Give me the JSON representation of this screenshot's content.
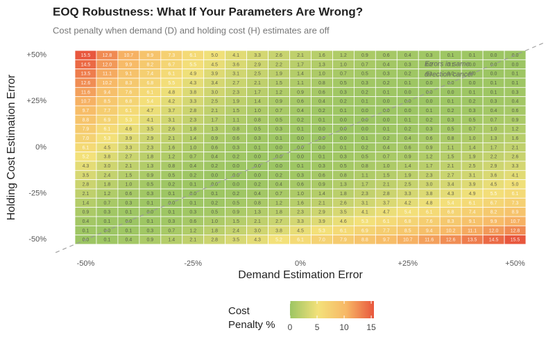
{
  "chart_data": {
    "type": "heatmap",
    "title": "EOQ Robustness: What If Your Parameters Are Wrong?",
    "subtitle": "Cost penalty when demand (D) and holding cost (H) estimates are off",
    "x_label": "Demand Estimation Error",
    "y_label": "Holding Cost Estimation Error",
    "annotation": [
      "Errors in same",
      "direction cancel"
    ],
    "x": [
      -50,
      -45,
      -40,
      -35,
      -30,
      -25,
      -20,
      -15,
      -10,
      -5,
      0,
      5,
      10,
      15,
      20,
      25,
      30,
      35,
      40,
      45,
      50
    ],
    "y": [
      50,
      45,
      40,
      35,
      30,
      25,
      20,
      15,
      10,
      5,
      0,
      -5,
      -10,
      -15,
      -20,
      -25,
      -30,
      -35,
      -40,
      -45,
      -50
    ],
    "xlim": [
      -52.5,
      52.5
    ],
    "ylim": [
      -52.5,
      52.5
    ],
    "xticks": [
      {
        "value": -50,
        "label": "-50%"
      },
      {
        "value": -25,
        "label": "-25%"
      },
      {
        "value": 0,
        "label": "0%"
      },
      {
        "value": 25,
        "label": "+25%"
      },
      {
        "value": 50,
        "label": "+50%"
      }
    ],
    "yticks": [
      {
        "value": 50,
        "label": "+50%"
      },
      {
        "value": 25,
        "label": "+25%"
      },
      {
        "value": 0,
        "label": "0%"
      },
      {
        "value": -25,
        "label": "-25%"
      },
      {
        "value": -50,
        "label": "-50%"
      }
    ],
    "z": [
      [
        15.5,
        12.8,
        10.7,
        8.9,
        7.3,
        6.1,
        5.0,
        4.1,
        3.3,
        2.6,
        2.1,
        1.6,
        1.2,
        0.9,
        0.6,
        0.4,
        0.3,
        0.1,
        0.1,
        0.0,
        0.0
      ],
      [
        14.5,
        12.0,
        9.9,
        8.2,
        6.7,
        5.5,
        4.5,
        3.6,
        2.9,
        2.2,
        1.7,
        1.3,
        1.0,
        0.7,
        0.4,
        0.3,
        0.2,
        0.1,
        0.0,
        0.0,
        0.0
      ],
      [
        13.5,
        11.1,
        9.1,
        7.4,
        6.1,
        4.9,
        3.9,
        3.1,
        2.5,
        1.9,
        1.4,
        1.0,
        0.7,
        0.5,
        0.3,
        0.2,
        0.1,
        0.0,
        0.0,
        0.0,
        0.1
      ],
      [
        12.6,
        10.2,
        8.3,
        6.8,
        5.5,
        4.3,
        3.4,
        2.7,
        2.1,
        1.5,
        1.1,
        0.8,
        0.5,
        0.3,
        0.2,
        0.1,
        0.0,
        0.0,
        0.0,
        0.1,
        0.1
      ],
      [
        11.6,
        9.4,
        7.6,
        6.1,
        4.8,
        3.8,
        3.0,
        2.3,
        1.7,
        1.2,
        0.9,
        0.6,
        0.3,
        0.2,
        0.1,
        0.0,
        0.0,
        0.0,
        0.1,
        0.1,
        0.3
      ],
      [
        10.7,
        8.5,
        6.8,
        5.4,
        4.2,
        3.3,
        2.5,
        1.9,
        1.4,
        0.9,
        0.6,
        0.4,
        0.2,
        0.1,
        0.0,
        0.0,
        0.0,
        0.1,
        0.2,
        0.3,
        0.4
      ],
      [
        9.7,
        7.7,
        6.1,
        4.7,
        3.7,
        2.8,
        2.1,
        1.5,
        1.0,
        0.7,
        0.4,
        0.2,
        0.1,
        0.0,
        0.0,
        0.0,
        0.1,
        0.2,
        0.3,
        0.4,
        0.6
      ],
      [
        8.8,
        6.9,
        5.3,
        4.1,
        3.1,
        2.3,
        1.7,
        1.1,
        0.8,
        0.5,
        0.2,
        0.1,
        0.0,
        0.0,
        0.0,
        0.1,
        0.2,
        0.3,
        0.5,
        0.7,
        0.9
      ],
      [
        7.9,
        6.1,
        4.6,
        3.5,
        2.6,
        1.8,
        1.3,
        0.8,
        0.5,
        0.3,
        0.1,
        0.0,
        0.0,
        0.0,
        0.1,
        0.2,
        0.3,
        0.5,
        0.7,
        1.0,
        1.2
      ],
      [
        7.0,
        5.3,
        3.9,
        2.9,
        2.1,
        1.4,
        0.9,
        0.6,
        0.3,
        0.1,
        0.0,
        0.0,
        0.0,
        0.1,
        0.2,
        0.4,
        0.6,
        0.8,
        1.0,
        1.3,
        1.6
      ],
      [
        6.1,
        4.5,
        3.3,
        2.3,
        1.6,
        1.0,
        0.6,
        0.3,
        0.1,
        0.0,
        0.0,
        0.0,
        0.1,
        0.2,
        0.4,
        0.6,
        0.9,
        1.1,
        1.4,
        1.7,
        2.1
      ],
      [
        5.2,
        3.8,
        2.7,
        1.8,
        1.2,
        0.7,
        0.4,
        0.2,
        0.0,
        0.0,
        0.0,
        0.1,
        0.3,
        0.5,
        0.7,
        0.9,
        1.2,
        1.5,
        1.9,
        2.2,
        2.6
      ],
      [
        4.3,
        3.0,
        2.1,
        1.3,
        0.8,
        0.4,
        0.2,
        0.0,
        0.0,
        0.0,
        0.1,
        0.3,
        0.5,
        0.8,
        1.0,
        1.4,
        1.7,
        2.1,
        2.5,
        2.9,
        3.3
      ],
      [
        3.5,
        2.4,
        1.5,
        0.9,
        0.5,
        0.2,
        0.0,
        0.0,
        0.0,
        0.2,
        0.3,
        0.6,
        0.8,
        1.1,
        1.5,
        1.9,
        2.3,
        2.7,
        3.1,
        3.6,
        4.1
      ],
      [
        2.8,
        1.8,
        1.0,
        0.5,
        0.2,
        0.1,
        0.0,
        0.0,
        0.2,
        0.4,
        0.6,
        0.9,
        1.3,
        1.7,
        2.1,
        2.5,
        3.0,
        3.4,
        3.9,
        4.5,
        5.0
      ],
      [
        2.1,
        1.2,
        0.6,
        0.3,
        0.1,
        0.0,
        0.1,
        0.2,
        0.4,
        0.7,
        1.0,
        1.4,
        1.8,
        2.3,
        2.8,
        3.3,
        3.8,
        4.3,
        4.9,
        5.5,
        6.1
      ],
      [
        1.4,
        0.7,
        0.3,
        0.1,
        0.0,
        0.1,
        0.2,
        0.5,
        0.8,
        1.2,
        1.6,
        2.1,
        2.6,
        3.1,
        3.7,
        4.2,
        4.8,
        5.4,
        6.1,
        6.7,
        7.3
      ],
      [
        0.9,
        0.3,
        0.1,
        0.0,
        0.1,
        0.3,
        0.5,
        0.9,
        1.3,
        1.8,
        2.3,
        2.9,
        3.5,
        4.1,
        4.7,
        5.4,
        6.1,
        6.8,
        7.4,
        8.2,
        8.9
      ],
      [
        0.4,
        0.1,
        0.0,
        0.1,
        0.3,
        0.6,
        1.0,
        1.5,
        2.1,
        2.7,
        3.3,
        3.9,
        4.6,
        5.3,
        6.1,
        6.8,
        7.6,
        8.3,
        9.1,
        9.9,
        10.7
      ],
      [
        0.1,
        0.0,
        0.1,
        0.3,
        0.7,
        1.2,
        1.8,
        2.4,
        3.0,
        3.8,
        4.5,
        5.3,
        6.1,
        6.9,
        7.7,
        8.5,
        9.4,
        10.2,
        11.1,
        12.0,
        12.8
      ],
      [
        0.0,
        0.1,
        0.4,
        0.9,
        1.4,
        2.1,
        2.8,
        3.5,
        4.3,
        5.2,
        6.1,
        7.0,
        7.9,
        8.8,
        9.7,
        10.7,
        11.6,
        12.6,
        13.5,
        14.5,
        15.5
      ]
    ],
    "value_labels": [
      [
        "15.5",
        "12.8",
        "10.7",
        "8.9",
        "7.3",
        "6.1",
        "5.0",
        "4.1",
        "3.3",
        "2.6",
        "2.1",
        "1.6",
        "1.2",
        "0.9",
        "0.6",
        "0.4",
        "0.3",
        "0.1",
        "0.1",
        "0.0",
        "0.0"
      ],
      [
        "14.5",
        "12.0",
        "9.9",
        "8.2",
        "6.7",
        "5.5",
        "4.5",
        "3.6",
        "2.9",
        "2.2",
        "1.7",
        "1.3",
        "1.0",
        "0.7",
        "0.4",
        "0.3",
        "0.2",
        "0.1",
        "0.0",
        "0.0",
        "0.0"
      ],
      [
        "13.5",
        "11.1",
        "9.1",
        "7.4",
        "6.1",
        "4.9",
        "3.9",
        "3.1",
        "2.5",
        "1.9",
        "1.4",
        "1.0",
        "0.7",
        "0.5",
        "0.3",
        "0.2",
        "0.1",
        "0.0",
        "0.0",
        "0.0",
        "0.1"
      ],
      [
        "12.6",
        "10.2",
        "8.3",
        "6.8",
        "5.5",
        "4.3",
        "3.4",
        "2.7",
        "2.1",
        "1.5",
        "1.1",
        "0.8",
        "0.5",
        "0.3",
        "0.2",
        "0.1",
        "0.0",
        "0.0",
        "0.0",
        "0.1",
        "0.1"
      ],
      [
        "11.6",
        "9.4",
        "7.6",
        "6.1",
        "4.8",
        "3.8",
        "3.0",
        "2.3",
        "1.7",
        "1.2",
        "0.9",
        "0.6",
        "0.3",
        "0.2",
        "0.1",
        "0.0",
        "0.0",
        "0.0",
        "0.1",
        "0.1",
        "0.3"
      ],
      [
        "10.7",
        "8.5",
        "6.8",
        "5.4",
        "4.2",
        "3.3",
        "2.5",
        "1.9",
        "1.4",
        "0.9",
        "0.6",
        "0.4",
        "0.2",
        "0.1",
        "0.0",
        "0.0",
        "0.0",
        "0.1",
        "0.2",
        "0.3",
        "0.4"
      ],
      [
        "9.7",
        "7.7",
        "6.1",
        "4.7",
        "3.7",
        "2.8",
        "2.1",
        "1.5",
        "1.0",
        "0.7",
        "0.4",
        "0.2",
        "0.1",
        "0.0",
        "0.0",
        "0.0",
        "0.1",
        "0.2",
        "0.3",
        "0.4",
        "0.6"
      ],
      [
        "8.8",
        "6.9",
        "5.3",
        "4.1",
        "3.1",
        "2.3",
        "1.7",
        "1.1",
        "0.8",
        "0.5",
        "0.2",
        "0.1",
        "0.0",
        "0.0",
        "0.0",
        "0.1",
        "0.2",
        "0.3",
        "0.5",
        "0.7",
        "0.9"
      ],
      [
        "7.9",
        "6.1",
        "4.6",
        "3.5",
        "2.6",
        "1.8",
        "1.3",
        "0.8",
        "0.5",
        "0.3",
        "0.1",
        "0.0",
        "0.0",
        "0.0",
        "0.1",
        "0.2",
        "0.3",
        "0.5",
        "0.7",
        "1.0",
        "1.2"
      ],
      [
        "7.0",
        "5.3",
        "3.9",
        "2.9",
        "2.1",
        "1.4",
        "0.9",
        "0.6",
        "0.3",
        "0.1",
        "0.0",
        "0.0",
        "0.0",
        "0.1",
        "0.2",
        "0.4",
        "0.6",
        "0.8",
        "1.0",
        "1.3",
        "1.6"
      ],
      [
        "6.1",
        "4.5",
        "3.3",
        "2.3",
        "1.6",
        "1.0",
        "0.6",
        "0.3",
        "0.1",
        "0.0",
        "0.0",
        "0.0",
        "0.1",
        "0.2",
        "0.4",
        "0.6",
        "0.9",
        "1.1",
        "1.4",
        "1.7",
        "2.1"
      ],
      [
        "5.2",
        "3.8",
        "2.7",
        "1.8",
        "1.2",
        "0.7",
        "0.4",
        "0.2",
        "0.0",
        "0.0",
        "0.0",
        "0.1",
        "0.3",
        "0.5",
        "0.7",
        "0.9",
        "1.2",
        "1.5",
        "1.9",
        "2.2",
        "2.6"
      ],
      [
        "4.3",
        "3.0",
        "2.1",
        "1.3",
        "0.8",
        "0.4",
        "0.2",
        "0.0",
        "0.0",
        "0.0",
        "0.1",
        "0.3",
        "0.5",
        "0.8",
        "1.0",
        "1.4",
        "1.7",
        "2.1",
        "2.5",
        "2.9",
        "3.3"
      ],
      [
        "3.5",
        "2.4",
        "1.5",
        "0.9",
        "0.5",
        "0.2",
        "0.0",
        "0.0",
        "0.0",
        "0.2",
        "0.3",
        "0.6",
        "0.8",
        "1.1",
        "1.5",
        "1.9",
        "2.3",
        "2.7",
        "3.1",
        "3.6",
        "4.1"
      ],
      [
        "2.8",
        "1.8",
        "1.0",
        "0.5",
        "0.2",
        "0.1",
        "0.0",
        "0.0",
        "0.2",
        "0.4",
        "0.6",
        "0.9",
        "1.3",
        "1.7",
        "2.1",
        "2.5",
        "3.0",
        "3.4",
        "3.9",
        "4.5",
        "5.0"
      ],
      [
        "2.1",
        "1.2",
        "0.6",
        "0.3",
        "0.1",
        "0.0",
        "0.1",
        "0.2",
        "0.4",
        "0.7",
        "1.0",
        "1.4",
        "1.8",
        "2.3",
        "2.8",
        "3.3",
        "3.8",
        "4.3",
        "4.9",
        "5.5",
        "6.1"
      ],
      [
        "1.4",
        "0.7",
        "0.3",
        "0.1",
        "0.0",
        "0.1",
        "0.2",
        "0.5",
        "0.8",
        "1.2",
        "1.6",
        "2.1",
        "2.6",
        "3.1",
        "3.7",
        "4.2",
        "4.8",
        "5.4",
        "6.1",
        "6.7",
        "7.3"
      ],
      [
        "0.9",
        "0.3",
        "0.1",
        "0.0",
        "0.1",
        "0.3",
        "0.5",
        "0.9",
        "1.3",
        "1.8",
        "2.3",
        "2.9",
        "3.5",
        "4.1",
        "4.7",
        "5.4",
        "6.1",
        "6.8",
        "7.4",
        "8.2",
        "8.9"
      ],
      [
        "0.4",
        "0.1",
        "0.0",
        "0.1",
        "0.3",
        "0.6",
        "1.0",
        "1.5",
        "2.1",
        "2.7",
        "3.3",
        "3.9",
        "4.6",
        "5.3",
        "6.1",
        "6.8",
        "7.6",
        "8.3",
        "9.1",
        "9.9",
        "10.7"
      ],
      [
        "0.1",
        "0.0",
        "0.1",
        "0.3",
        "0.7",
        "1.2",
        "1.8",
        "2.4",
        "3.0",
        "3.8",
        "4.5",
        "5.3",
        "6.1",
        "6.9",
        "7.7",
        "8.5",
        "9.4",
        "10.2",
        "11.1",
        "12.0",
        "12.8"
      ],
      [
        "0.0",
        "0.1",
        "0.4",
        "0.9",
        "1.4",
        "2.1",
        "2.8",
        "3.5",
        "4.3",
        "5.2",
        "6.1",
        "7.0",
        "7.9",
        "8.8",
        "9.7",
        "10.7",
        "11.6",
        "12.6",
        "13.5",
        "14.5",
        "15.5"
      ]
    ],
    "colorbar": {
      "title": [
        "Cost",
        "Penalty %"
      ],
      "lim": [
        0,
        15.5
      ],
      "ticks": [
        0,
        5,
        10,
        15
      ],
      "colors": [
        "#9cc563",
        "#f3e17a",
        "#f7b866",
        "#e8573d"
      ]
    }
  }
}
